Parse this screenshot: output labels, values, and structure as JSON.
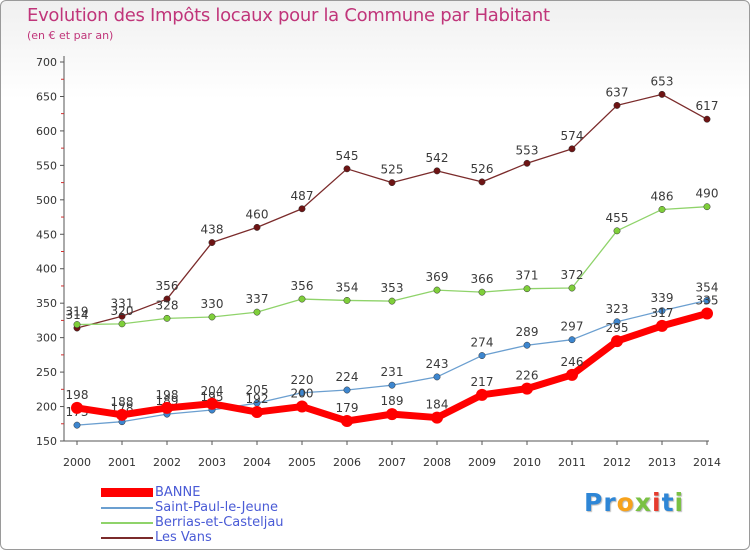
{
  "title": "Evolution des Impôts locaux pour la Commune par Habitant",
  "subtitle": "(en € et par an)",
  "logo": {
    "text": "Proxiti",
    "letters": [
      {
        "ch": "P",
        "color": "#2e86d6"
      },
      {
        "ch": "r",
        "color": "#2e86d6"
      },
      {
        "ch": "o",
        "color": "#f7a21b"
      },
      {
        "ch": "x",
        "color": "#7ac143"
      },
      {
        "ch": "i",
        "color": "#e63b2e"
      },
      {
        "ch": "t",
        "color": "#2e86d6"
      },
      {
        "ch": "i",
        "color": "#7ac143"
      }
    ]
  },
  "chart_data": {
    "type": "line",
    "title": "Evolution des Impôts locaux pour la Commune par Habitant",
    "subtitle": "(en € et par an)",
    "xlabel": "",
    "ylabel": "",
    "x": [
      "2000",
      "2001",
      "2002",
      "2003",
      "2004",
      "2005",
      "2006",
      "2007",
      "2008",
      "2009",
      "2010",
      "2011",
      "2012",
      "2013",
      "2014"
    ],
    "ylim": [
      150,
      700
    ],
    "yticks": [
      "150",
      "200",
      "250",
      "300",
      "350",
      "400",
      "450",
      "500",
      "550",
      "600",
      "650",
      "700"
    ],
    "grid": false,
    "legend_position": "bottom-left",
    "series": [
      {
        "name": "Les Vans",
        "color": "#7b2b2b",
        "marker": "#6e1414",
        "width": 1.3,
        "values": [
          314,
          331,
          356,
          438,
          460,
          487,
          545,
          525,
          542,
          526,
          553,
          574,
          637,
          653,
          617
        ],
        "labels": [
          "314",
          "331",
          "356",
          "438",
          "460",
          "487",
          "545",
          "525",
          "542",
          "526",
          "553",
          "574",
          "637",
          "653",
          "617"
        ]
      },
      {
        "name": "Berrias-et-Casteljau",
        "color": "#8fd36a",
        "marker": "#7fcf3a",
        "width": 1.3,
        "values": [
          319,
          320,
          328,
          330,
          337,
          356,
          354,
          353,
          369,
          366,
          371,
          372,
          455,
          486,
          490
        ],
        "labels": [
          "319",
          "320",
          "328",
          "330",
          "337",
          "356",
          "354",
          "353",
          "369",
          "366",
          "371",
          "372",
          "455",
          "486",
          "490"
        ]
      },
      {
        "name": "Saint-Paul-le-Jeune",
        "color": "#6b9fd0",
        "marker": "#3d86cf",
        "width": 1.3,
        "values": [
          173,
          178,
          189,
          195,
          205,
          220,
          224,
          231,
          243,
          274,
          289,
          297,
          323,
          339,
          354
        ],
        "labels": [
          "173",
          "178",
          "189",
          "195",
          "205",
          "220",
          "224",
          "231",
          "243",
          "274",
          "289",
          "297",
          "323",
          "339",
          "354"
        ]
      },
      {
        "name": "BANNE",
        "color": "#ff0000",
        "marker": "#ff0000",
        "width": 7,
        "values": [
          198,
          188,
          198,
          204,
          192,
          200,
          179,
          189,
          184,
          217,
          226,
          246,
          295,
          317,
          335
        ],
        "labels": [
          "198",
          "188",
          "198",
          "204",
          "192",
          "200",
          "179",
          "189",
          "184",
          "217",
          "226",
          "246",
          "295",
          "317",
          "335"
        ]
      }
    ],
    "legend": [
      "BANNE",
      "Saint-Paul-le-Jeune",
      "Berrias-et-Casteljau",
      "Les Vans"
    ]
  }
}
